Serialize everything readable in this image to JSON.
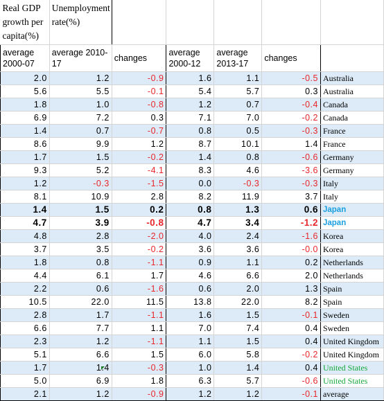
{
  "header": {
    "gdp_title": "Real GDP growth per capita(%)",
    "unemp_title": "Unemployment rate(%)",
    "cols": [
      "average 2000-07",
      "average 2010-17",
      "changes",
      "average 2000-12",
      "average 2013-17",
      "changes"
    ]
  },
  "rows": [
    {
      "v": [
        "2.0",
        "1.2",
        "-0.9",
        "1.6",
        "1.1",
        "-0.5"
      ],
      "label": "Australia"
    },
    {
      "v": [
        "5.6",
        "5.5",
        "-0.1",
        "5.4",
        "5.7",
        "0.3"
      ],
      "label": "Australia"
    },
    {
      "v": [
        "1.8",
        "1.0",
        "-0.8",
        "1.2",
        "0.7",
        "-0.4"
      ],
      "label": "Canada"
    },
    {
      "v": [
        "6.9",
        "7.2",
        "0.3",
        "7.1",
        "7.0",
        "-0.2"
      ],
      "label": "Canada"
    },
    {
      "v": [
        "1.4",
        "0.7",
        "-0.7",
        "0.8",
        "0.5",
        "-0.3"
      ],
      "label": "France"
    },
    {
      "v": [
        "8.6",
        "9.9",
        "1.2",
        "8.7",
        "10.1",
        "1.4"
      ],
      "label": "France"
    },
    {
      "v": [
        "1.7",
        "1.5",
        "-0.2",
        "1.4",
        "0.8",
        "-0.6"
      ],
      "label": "Germany"
    },
    {
      "v": [
        "9.3",
        "5.2",
        "-4.1",
        "8.3",
        "4.6",
        "-3.6"
      ],
      "label": "Germany"
    },
    {
      "v": [
        "1.2",
        "-0.3",
        "-1.5",
        "0.0",
        "-0.3",
        "-0.3"
      ],
      "label": "Italy"
    },
    {
      "v": [
        "8.1",
        "10.9",
        "2.8",
        "8.2",
        "11.9",
        "3.7"
      ],
      "label": "Italy"
    },
    {
      "v": [
        "1.4",
        "1.5",
        "0.2",
        "0.8",
        "1.3",
        "0.6"
      ],
      "label": "Japan"
    },
    {
      "v": [
        "4.7",
        "3.9",
        "-0.8",
        "4.7",
        "3.4",
        "-1.2"
      ],
      "label": "Japan"
    },
    {
      "v": [
        "4.8",
        "2.8",
        "-2.0",
        "4.0",
        "2.4",
        "-1.6"
      ],
      "label": "Korea"
    },
    {
      "v": [
        "3.7",
        "3.5",
        "-0.2",
        "3.6",
        "3.6",
        "-0.0"
      ],
      "label": "Korea"
    },
    {
      "v": [
        "1.8",
        "0.8",
        "-1.1",
        "0.9",
        "1.1",
        "0.2"
      ],
      "label": "Netherlands"
    },
    {
      "v": [
        "4.4",
        "6.1",
        "1.7",
        "4.6",
        "6.6",
        "2.0"
      ],
      "label": "Netherlands"
    },
    {
      "v": [
        "2.2",
        "0.6",
        "-1.6",
        "0.6",
        "2.0",
        "1.3"
      ],
      "label": "Spain"
    },
    {
      "v": [
        "10.5",
        "22.0",
        "11.5",
        "13.8",
        "22.0",
        "8.2"
      ],
      "label": "Spain"
    },
    {
      "v": [
        "2.8",
        "1.7",
        "-1.1",
        "1.6",
        "1.5",
        "-0.1"
      ],
      "label": "Sweden"
    },
    {
      "v": [
        "6.6",
        "7.7",
        "1.1",
        "7.0",
        "7.4",
        "0.4"
      ],
      "label": "Sweden"
    },
    {
      "v": [
        "2.3",
        "1.2",
        "-1.1",
        "1.1",
        "1.5",
        "0.4"
      ],
      "label": "United Kingdom"
    },
    {
      "v": [
        "5.1",
        "6.6",
        "1.5",
        "6.0",
        "5.8",
        "-0.2"
      ],
      "label": "United Kingdom"
    },
    {
      "v": [
        "1.7",
        "1.4",
        "-0.3",
        "1.0",
        "1.4",
        "0.4"
      ],
      "label": "United States"
    },
    {
      "v": [
        "5.0",
        "6.9",
        "1.8",
        "6.3",
        "5.7",
        "-0.6"
      ],
      "label": "United States"
    },
    {
      "v": [
        "2.1",
        "1.2",
        "-0.9",
        "1.2",
        "1.2",
        "-0.1"
      ],
      "label": "average"
    }
  ],
  "colors": {
    "negative": "#e8262b",
    "japan": "#1a9fe0",
    "united_states": "#14a83a",
    "blue_row": "#dcebf7"
  }
}
